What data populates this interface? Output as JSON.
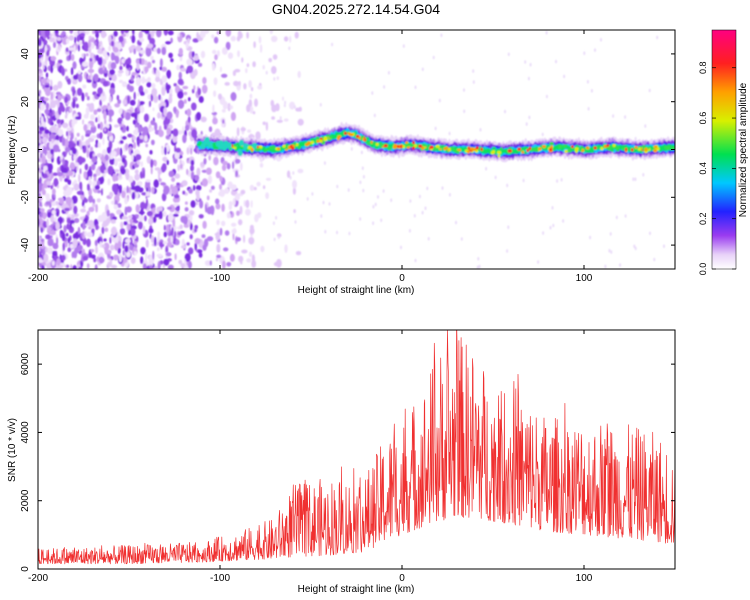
{
  "title": "GN04.2025.272.14.54.G04",
  "chart_data": [
    {
      "type": "heatmap",
      "panel": "spectrogram",
      "xlabel": "Height of straight line (km)",
      "ylabel": "Frequency (Hz)",
      "xlim": [
        -200,
        150
      ],
      "ylim": [
        -50,
        50
      ],
      "xticks": [
        -200,
        -100,
        0,
        100
      ],
      "xtick_labels": [
        "-200",
        "-100",
        "0",
        "100"
      ],
      "yticks": [
        -40,
        -20,
        0,
        20,
        40
      ],
      "ytick_labels": [
        "-40",
        "-20",
        "0",
        "20",
        "40"
      ],
      "colorbar": {
        "label": "Normalized spectral amplitude",
        "range": [
          0,
          0.95
        ],
        "ticks": [
          0.0,
          0.2,
          0.4,
          0.6,
          0.8
        ],
        "tick_labels": [
          "0.0",
          "0.2",
          "0.4",
          "0.6",
          "0.8"
        ]
      },
      "ridge": {
        "description": "Narrow high-amplitude band near 0 Hz from about -110 km to 150 km",
        "x": [
          -110,
          -90,
          -70,
          -55,
          -45,
          -35,
          -30,
          -25,
          -15,
          -5,
          5,
          15,
          25,
          40,
          55,
          70,
          85,
          100,
          115,
          130,
          150
        ],
        "y": [
          2,
          1,
          0,
          2,
          4,
          6,
          7,
          6,
          2,
          1,
          2,
          1,
          0,
          0,
          -1,
          0,
          1,
          0,
          1,
          0,
          1
        ]
      },
      "noise_region": {
        "x_from": -200,
        "x_to": -60,
        "note": "broadband purple noise"
      }
    },
    {
      "type": "line",
      "panel": "snr",
      "xlabel": "Height of straight line (km)",
      "ylabel": "SNR (10 * v/v)",
      "xlim": [
        -200,
        150
      ],
      "ylim": [
        0,
        7000
      ],
      "xticks": [
        -200,
        -100,
        0,
        100
      ],
      "xtick_labels": [
        "-200",
        "-100",
        "0",
        "100"
      ],
      "yticks": [
        0,
        2000,
        4000,
        6000
      ],
      "ytick_labels": [
        "0",
        "2000",
        "4000",
        "6000"
      ],
      "color": "#f03030",
      "envelope": {
        "x": [
          -200,
          -150,
          -110,
          -90,
          -70,
          -60,
          -40,
          -20,
          -10,
          0,
          10,
          20,
          30,
          40,
          50,
          60,
          70,
          80,
          100,
          120,
          140,
          150
        ],
        "low": [
          150,
          150,
          200,
          250,
          300,
          350,
          400,
          500,
          800,
          1000,
          1200,
          1400,
          1500,
          1500,
          1400,
          1300,
          1200,
          1100,
          1000,
          900,
          800,
          700
        ],
        "high": [
          600,
          700,
          800,
          1100,
          1500,
          2500,
          2700,
          2800,
          3800,
          4500,
          5200,
          6500,
          7000,
          6500,
          5500,
          5500,
          5000,
          4500,
          4500,
          4300,
          4000,
          3500
        ]
      }
    }
  ]
}
